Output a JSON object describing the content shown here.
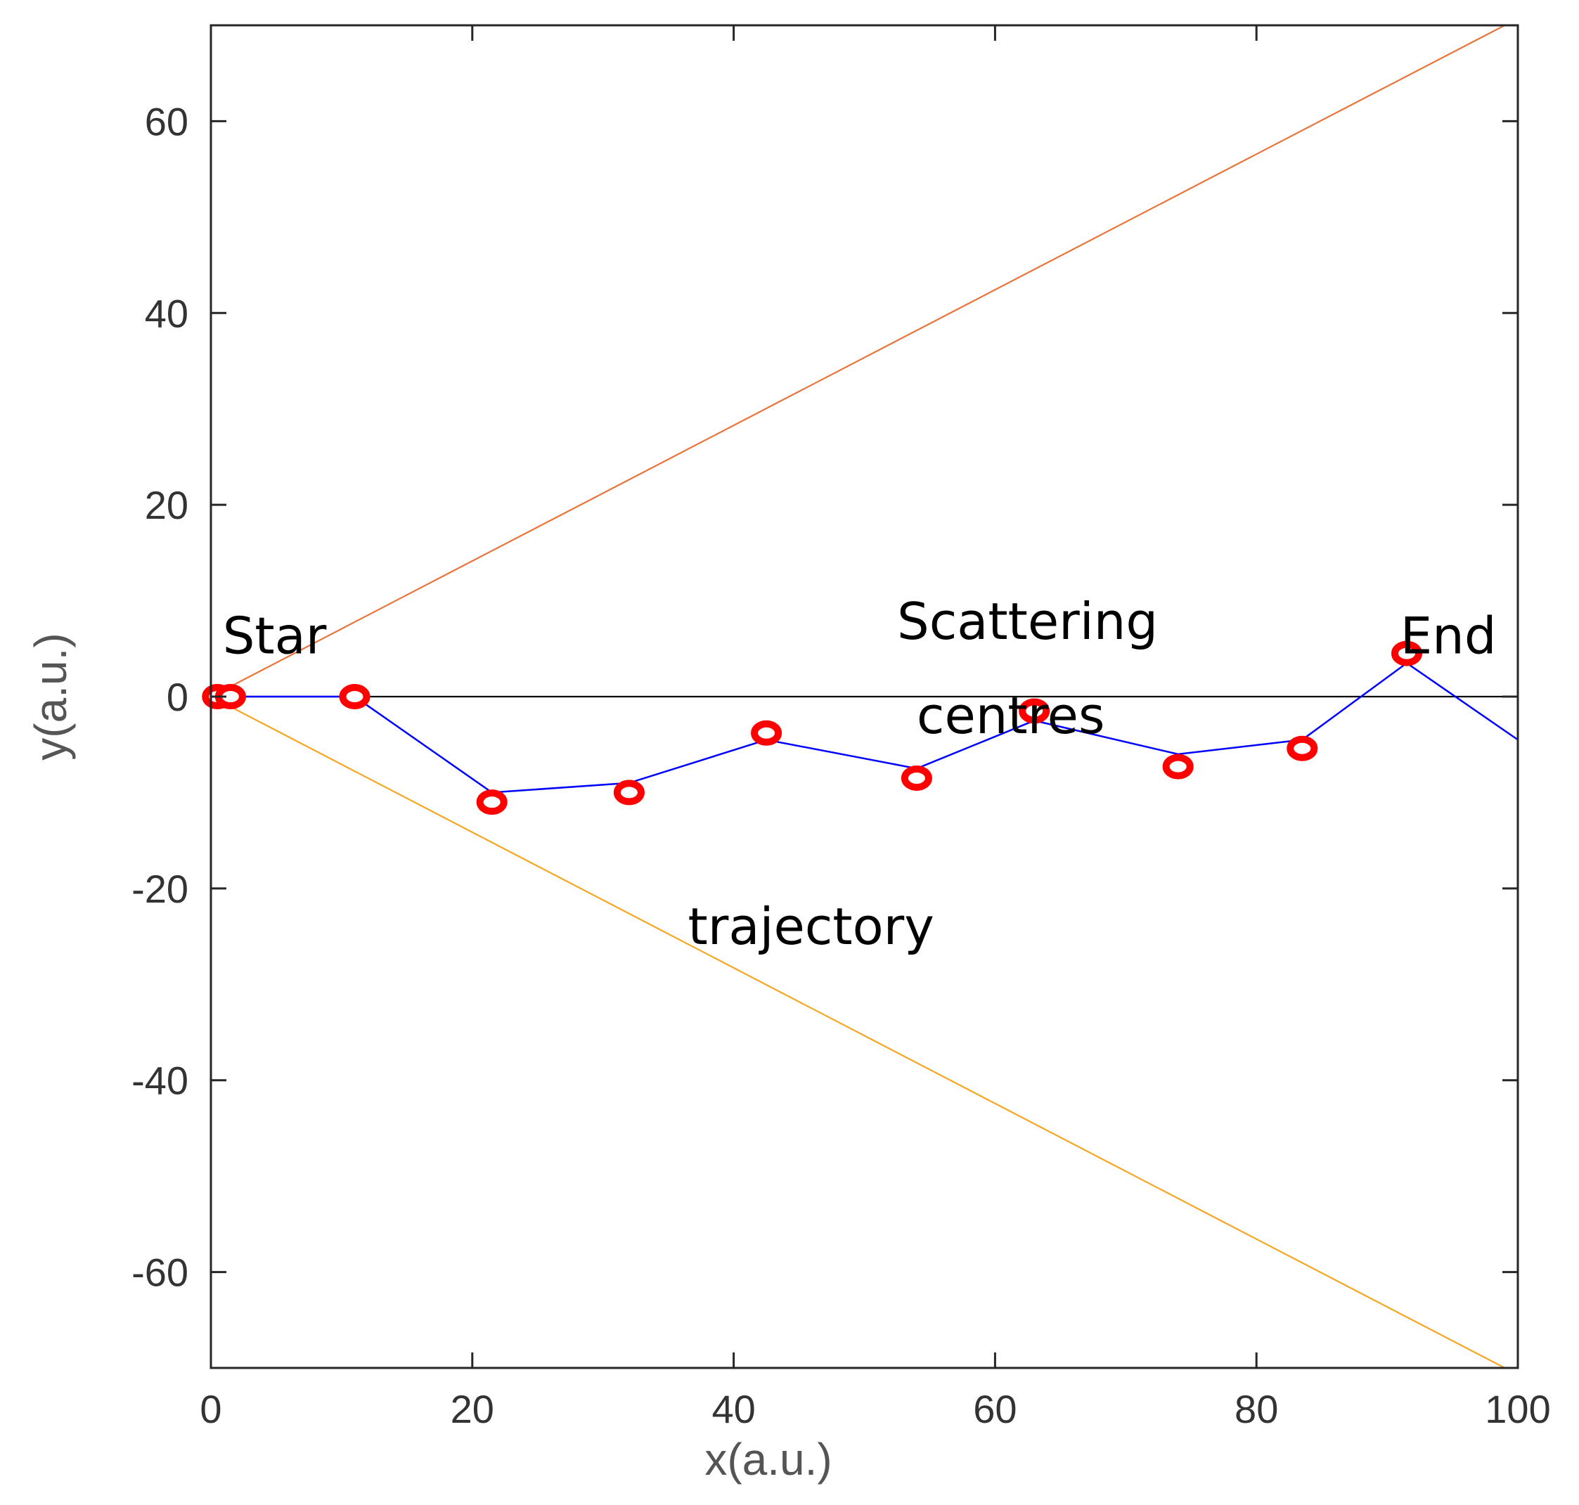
{
  "chart_data": {
    "type": "line",
    "xlabel": "x(a.u.)",
    "ylabel": "y(a.u.)",
    "xlim": [
      0,
      100
    ],
    "ylim": [
      -70,
      70
    ],
    "xticks": [
      0,
      20,
      40,
      60,
      80,
      100
    ],
    "yticks": [
      -60,
      -40,
      -20,
      0,
      20,
      40,
      60
    ],
    "xtick_labels": [
      "0",
      "20",
      "40",
      "60",
      "80",
      "100"
    ],
    "ytick_labels": [
      "-60",
      "-40",
      "-20",
      "0",
      "20",
      "40",
      "60"
    ],
    "grid": false,
    "series": [
      {
        "role": "upper-bound",
        "color": "#e8743b",
        "x": [
          0,
          99
        ],
        "y": [
          0,
          70
        ]
      },
      {
        "role": "lower-bound",
        "color": "#f5a623",
        "x": [
          0,
          99
        ],
        "y": [
          0,
          -70
        ]
      },
      {
        "role": "axis-line",
        "color": "#000000",
        "x": [
          0,
          100
        ],
        "y": [
          0,
          0
        ]
      },
      {
        "role": "trajectory",
        "color": "#0000ff",
        "x": [
          0,
          11,
          21.5,
          32,
          42.5,
          54,
          63,
          74,
          83.5,
          91.5,
          100
        ],
        "y": [
          0,
          0,
          -10,
          -9,
          -4.5,
          -7.5,
          -2.5,
          -6,
          -4.5,
          3.5,
          -4.5
        ]
      },
      {
        "role": "scattering-centres",
        "color": "#ff0000",
        "x": [
          0.5,
          1.5,
          11,
          21.5,
          32,
          42.5,
          54,
          63,
          74,
          83.5,
          91.5
        ],
        "y": [
          0,
          0,
          0,
          -11,
          -10,
          -3.8,
          -8.5,
          -1.5,
          -7.3,
          -5.4,
          4.5
        ]
      }
    ],
    "annotations": [
      {
        "text": "Star",
        "x": 0.9,
        "y": 4.5
      },
      {
        "text": "Scattering",
        "x": 52.5,
        "y": 6
      },
      {
        "text": "centres",
        "x": 54,
        "y": -3.8
      },
      {
        "text": "trajectory",
        "x": 36.5,
        "y": -25.8
      },
      {
        "text": "End",
        "x": 91,
        "y": 4.5
      }
    ]
  }
}
